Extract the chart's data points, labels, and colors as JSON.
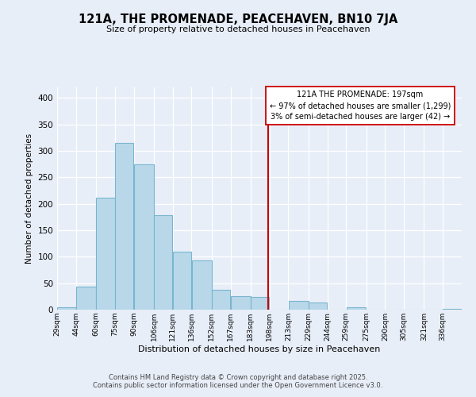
{
  "title": "121A, THE PROMENADE, PEACEHAVEN, BN10 7JA",
  "subtitle": "Size of property relative to detached houses in Peacehaven",
  "xlabel": "Distribution of detached houses by size in Peacehaven",
  "ylabel": "Number of detached properties",
  "bin_labels": [
    "29sqm",
    "44sqm",
    "60sqm",
    "75sqm",
    "90sqm",
    "106sqm",
    "121sqm",
    "136sqm",
    "152sqm",
    "167sqm",
    "183sqm",
    "198sqm",
    "213sqm",
    "229sqm",
    "244sqm",
    "259sqm",
    "275sqm",
    "290sqm",
    "305sqm",
    "321sqm",
    "336sqm"
  ],
  "bin_edges": [
    29,
    44,
    60,
    75,
    90,
    106,
    121,
    136,
    152,
    167,
    183,
    198,
    213,
    229,
    244,
    259,
    275,
    290,
    305,
    321,
    336,
    351
  ],
  "bar_heights": [
    5,
    43,
    211,
    315,
    275,
    179,
    110,
    93,
    38,
    25,
    24,
    0,
    16,
    13,
    0,
    5,
    0,
    0,
    0,
    0,
    2
  ],
  "bar_color": "#b8d8ea",
  "bar_edgecolor": "#7ab5d0",
  "property_value": 197,
  "vline_color": "#cc0000",
  "annotation_title": "121A THE PROMENADE: 197sqm",
  "annotation_line1": "← 97% of detached houses are smaller (1,299)",
  "annotation_line2": "3% of semi-detached houses are larger (42) →",
  "annotation_box_facecolor": "#ffffff",
  "annotation_box_edgecolor": "#cc0000",
  "ylim": [
    0,
    420
  ],
  "background_color": "#e8eef8",
  "grid_color": "#ffffff",
  "footer1": "Contains HM Land Registry data © Crown copyright and database right 2025.",
  "footer2": "Contains public sector information licensed under the Open Government Licence v3.0."
}
